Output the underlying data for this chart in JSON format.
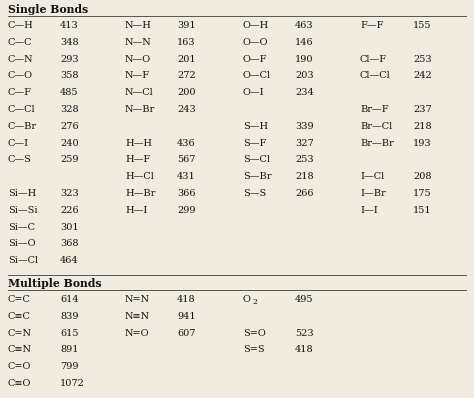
{
  "section1": "Single Bonds",
  "section2": "Multiple Bonds",
  "single_bonds": [
    [
      "C—H",
      "413",
      "N—H",
      "391",
      "O—H",
      "463",
      "F—F",
      "155"
    ],
    [
      "C—C",
      "348",
      "N—N",
      "163",
      "O—O",
      "146",
      "",
      ""
    ],
    [
      "C—N",
      "293",
      "N—O",
      "201",
      "O—F",
      "190",
      "Cl—F",
      "253"
    ],
    [
      "C—O",
      "358",
      "N—F",
      "272",
      "O—Cl",
      "203",
      "Cl—Cl",
      "242"
    ],
    [
      "C—F",
      "485",
      "N—Cl",
      "200",
      "O—I",
      "234",
      "",
      ""
    ],
    [
      "C—Cl",
      "328",
      "N—Br",
      "243",
      "",
      "",
      "Br—F",
      "237"
    ],
    [
      "C—Br",
      "276",
      "",
      "",
      "S—H",
      "339",
      "Br—Cl",
      "218"
    ],
    [
      "C—I",
      "240",
      "H—H",
      "436",
      "S—F",
      "327",
      "Br—Br",
      "193"
    ],
    [
      "C—S",
      "259",
      "H—F",
      "567",
      "S—Cl",
      "253",
      "",
      ""
    ],
    [
      "",
      "",
      "H—Cl",
      "431",
      "S—Br",
      "218",
      "I—Cl",
      "208"
    ],
    [
      "Si—H",
      "323",
      "H—Br",
      "366",
      "S—S",
      "266",
      "I—Br",
      "175"
    ],
    [
      "Si—Si",
      "226",
      "H—I",
      "299",
      "",
      "",
      "I—I",
      "151"
    ],
    [
      "Si—C",
      "301",
      "",
      "",
      "",
      "",
      "",
      ""
    ],
    [
      "Si—O",
      "368",
      "",
      "",
      "",
      "",
      "",
      ""
    ],
    [
      "Si—Cl",
      "464",
      "",
      "",
      "",
      "",
      "",
      ""
    ]
  ],
  "multiple_bonds": [
    [
      "C=C",
      "614",
      "N=N",
      "418",
      "O2",
      "495",
      "",
      ""
    ],
    [
      "C≡C",
      "839",
      "N≡N",
      "941",
      "",
      "",
      "",
      ""
    ],
    [
      "C=N",
      "615",
      "N=O",
      "607",
      "S=O",
      "523",
      "",
      ""
    ],
    [
      "C≡N",
      "891",
      "",
      "",
      "S=S",
      "418",
      "",
      ""
    ],
    [
      "C=O",
      "799",
      "",
      "",
      "",
      "",
      "",
      ""
    ],
    [
      "C≡O",
      "1072",
      "",
      "",
      "",
      "",
      "",
      ""
    ]
  ],
  "bg_color": "#f0ece0",
  "text_color": "#111111",
  "line_color": "#555555"
}
